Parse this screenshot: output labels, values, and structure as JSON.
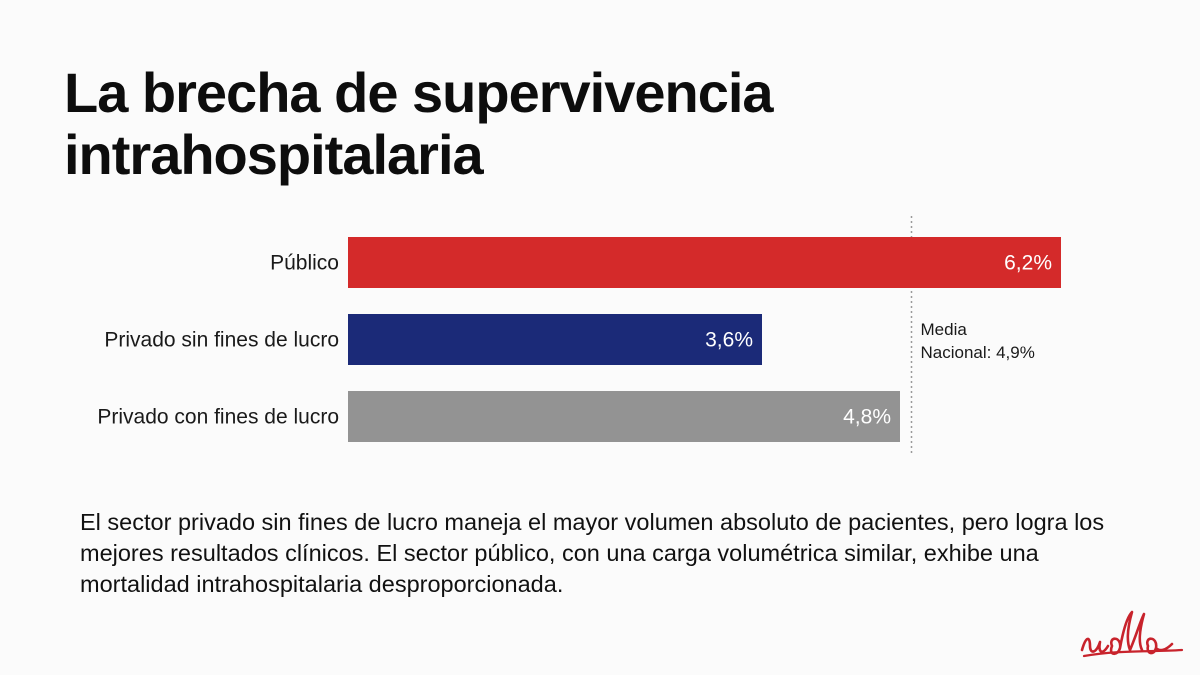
{
  "slide": {
    "title_line1": "La brecha de supervivencia",
    "title_line2": "intrahospitalaria",
    "note": "El sector privado sin fines de lucro maneja el mayor volumen absoluto de pacientes, pero logra los mejores resultados clínicos. El sector público, con una carga volumétrica similar, exhibe una mortalidad intrahospitalaria desproporcionada.",
    "logo_text": "udla"
  },
  "chart_data": {
    "type": "bar",
    "orientation": "horizontal",
    "title": "La brecha de supervivencia intrahospitalaria",
    "categories": [
      "Público",
      "Privado sin fines de lucro",
      "Privado con fines de lucro"
    ],
    "values": [
      6.2,
      3.6,
      4.8
    ],
    "value_labels": [
      "6,2%",
      "3,6%",
      "4,8%"
    ],
    "colors": [
      "#d42a2a",
      "#1b2a78",
      "#939393"
    ],
    "xlim": [
      0,
      6.2
    ],
    "unit": "%",
    "reference_line": {
      "value": 4.9,
      "label_line1": "Media",
      "label_line2": "Nacional: 4,9%"
    },
    "grid": false,
    "legend": "none"
  }
}
